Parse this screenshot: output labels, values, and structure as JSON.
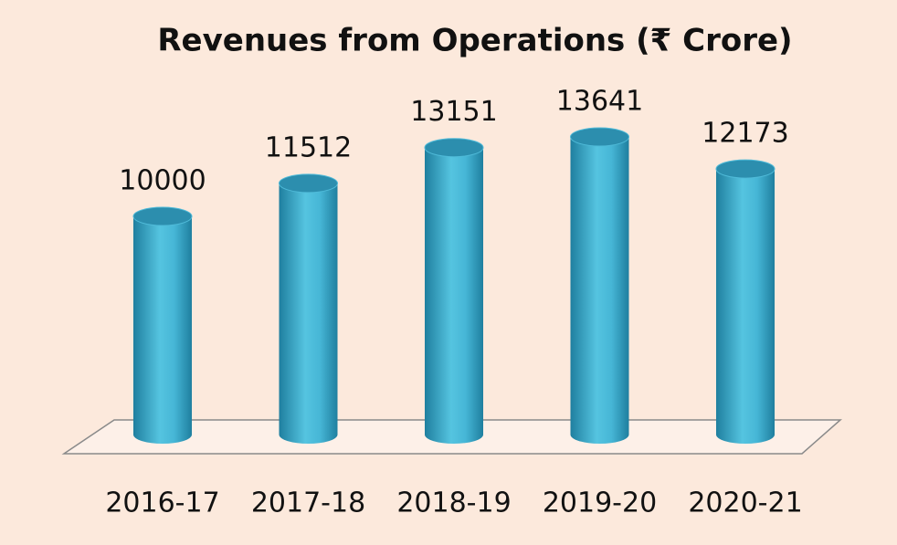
{
  "chart_data": {
    "type": "bar",
    "title": "Revenues from Operations (₹ Crore)",
    "categories": [
      "2016-17",
      "2017-18",
      "2018-19",
      "2019-20",
      "2020-21"
    ],
    "values": [
      10000,
      11512,
      13151,
      13641,
      12173
    ],
    "color": "#3fb0d2"
  }
}
